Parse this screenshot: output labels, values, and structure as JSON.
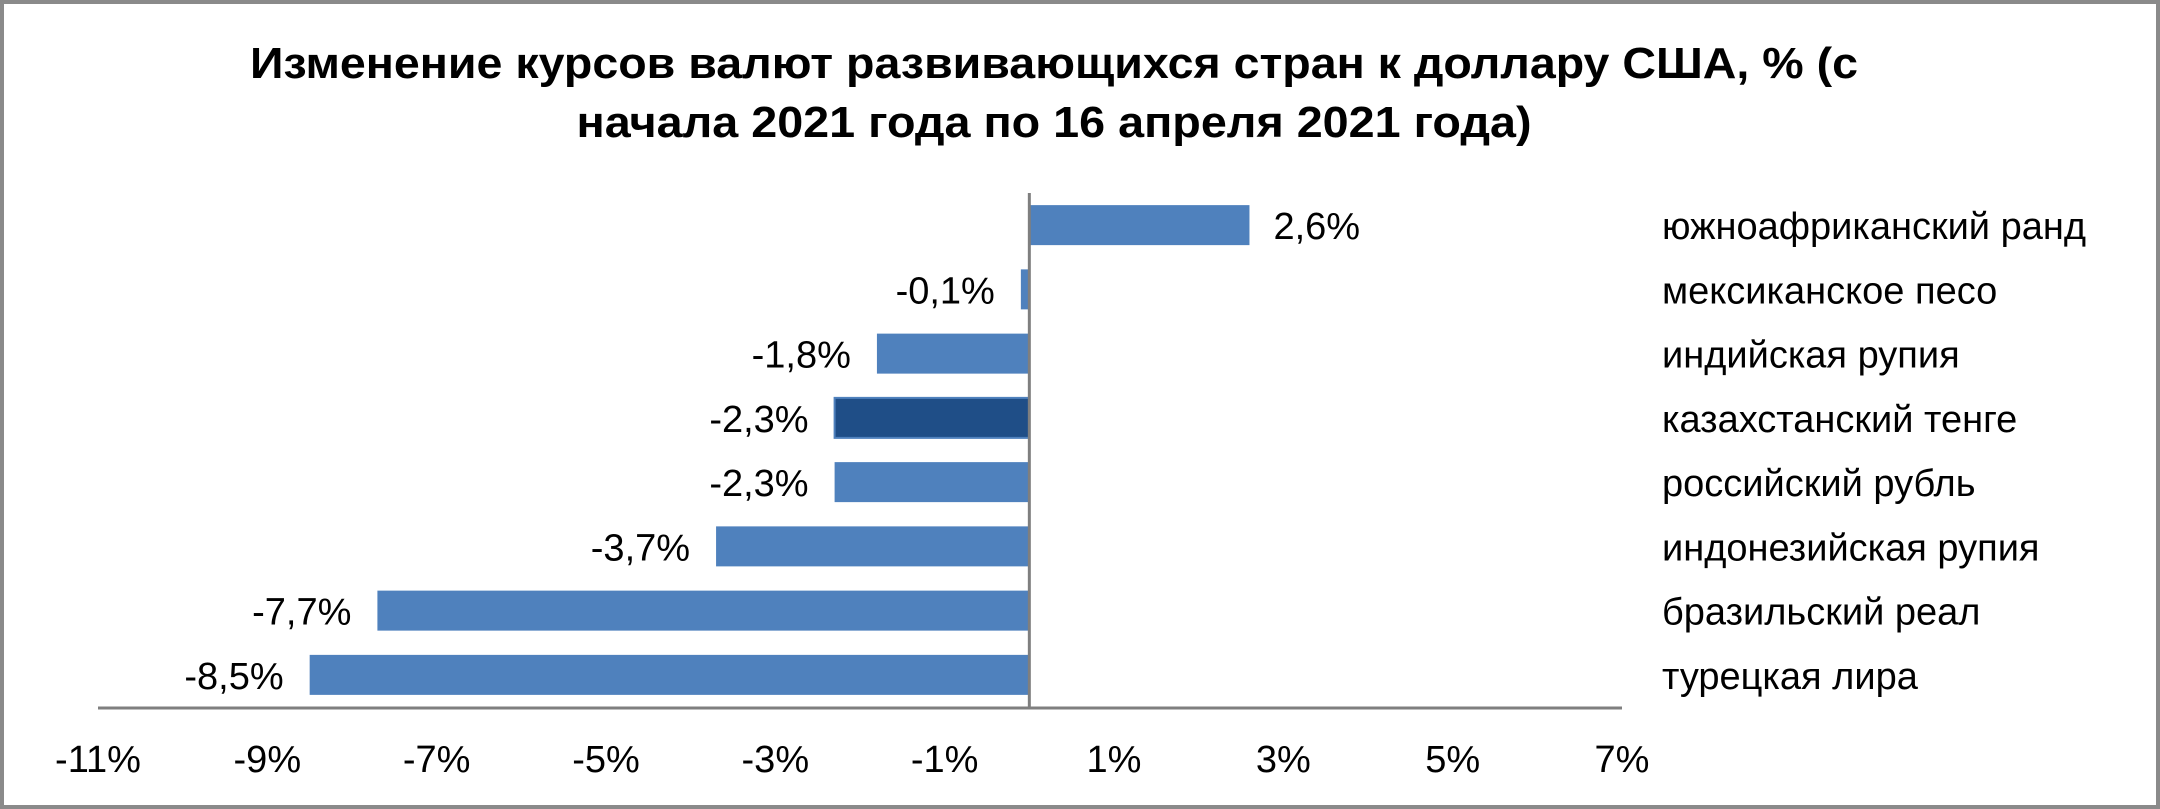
{
  "chart_data": {
    "type": "bar",
    "orientation": "horizontal",
    "title": "Изменение курсов валют развивающихся стран к доллару США, % (с начала 2021 года по 16 апреля 2021 года)",
    "title_lines": [
      "Изменение курсов валют развивающихся стран к доллару США, % (с",
      "начала 2021 года по 16 апреля 2021 года)"
    ],
    "xlabel": "",
    "ylabel": "",
    "categories": [
      "южноафриканский ранд",
      "мексиканское песо",
      "индийская рупия",
      "казахстанский тенге",
      "российский рубль",
      "индонезийская рупия",
      "бразильский реал",
      "турецкая лира"
    ],
    "values": [
      2.6,
      -0.1,
      -1.8,
      -2.3,
      -2.3,
      -3.7,
      -7.7,
      -8.5
    ],
    "value_labels": [
      "2,6%",
      "-0,1%",
      "-1,8%",
      "-2,3%",
      "-2,3%",
      "-3,7%",
      "-7,7%",
      "-8,5%"
    ],
    "highlighted_category": "казахстанский тенге",
    "xlim": [
      -11,
      7
    ],
    "x_ticks": [
      -11,
      -9,
      -7,
      -5,
      -3,
      -1,
      1,
      3,
      5,
      7
    ],
    "x_tick_labels": [
      "-11%",
      "-9%",
      "-7%",
      "-5%",
      "-3%",
      "-1%",
      "1%",
      "3%",
      "5%",
      "7%"
    ],
    "grid": false,
    "legend": null,
    "colors": {
      "bar": "#4f81bd",
      "highlight_bar": "#1f4e87",
      "axis": "#7f7f7f"
    }
  }
}
